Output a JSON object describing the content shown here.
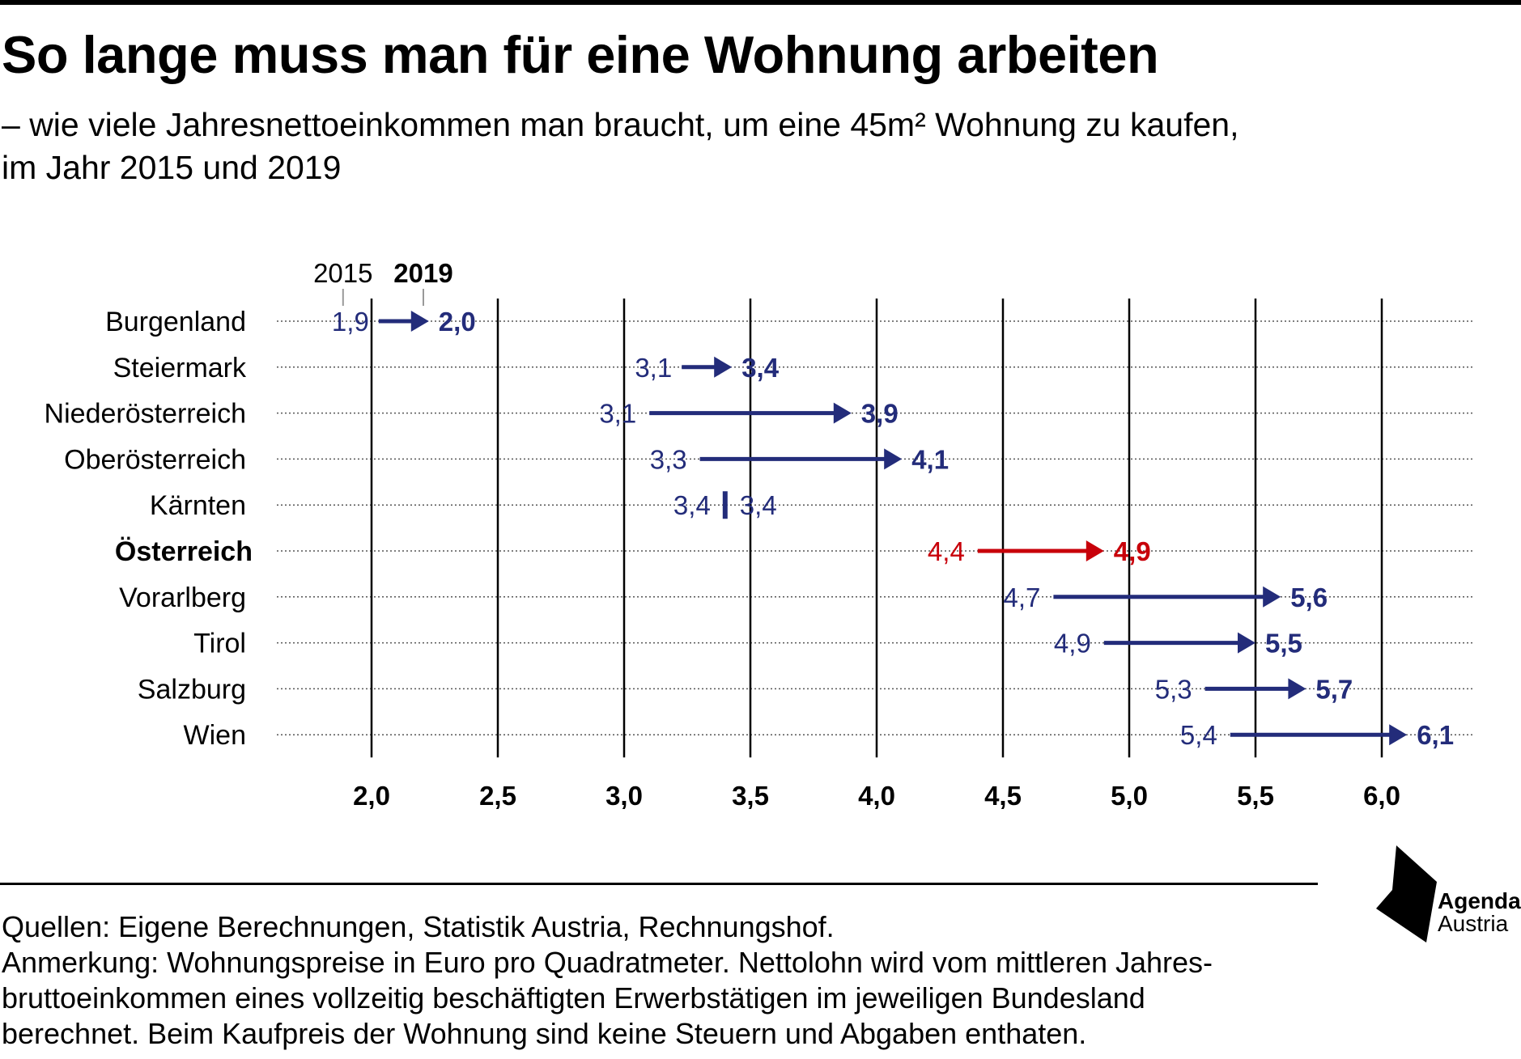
{
  "title": "So lange muss man für eine Wohnung arbeiten",
  "subtitle_line1": "– wie viele Jahresnettoeinkommen man braucht, um eine 45m² Wohnung zu kaufen,",
  "subtitle_line2": "im Jahr 2015 und 2019",
  "chart_data": {
    "type": "arrow-dot",
    "year_start_label": "2015",
    "year_end_label": "2019",
    "xlim": [
      1.8,
      6.4
    ],
    "x_ticks": [
      "2,0",
      "2,5",
      "3,0",
      "3,5",
      "4,0",
      "4,5",
      "5,0",
      "5,5",
      "6,0"
    ],
    "x_tick_values": [
      2.0,
      2.5,
      3.0,
      3.5,
      4.0,
      4.5,
      5.0,
      5.5,
      6.0
    ],
    "grid_vertical": true,
    "colors": {
      "default": "#232c7a",
      "highlight": "#c8000a"
    },
    "rows": [
      {
        "label": "Burgenland",
        "start": 1.9,
        "end": 2.0,
        "start_label": "1,9",
        "end_label": "2,0",
        "highlight": false
      },
      {
        "label": "Steiermark",
        "start": 3.1,
        "end": 3.4,
        "start_label": "3,1",
        "end_label": "3,4",
        "highlight": false
      },
      {
        "label": "Niederösterreich",
        "start": 3.1,
        "end": 3.9,
        "start_label": "3,1",
        "end_label": "3,9",
        "highlight": false
      },
      {
        "label": "Oberösterreich",
        "start": 3.3,
        "end": 4.1,
        "start_label": "3,3",
        "end_label": "4,1",
        "highlight": false
      },
      {
        "label": "Kärnten",
        "start": 3.4,
        "end": 3.4,
        "start_label": "3,4",
        "end_label": "3,4",
        "highlight": false
      },
      {
        "label": "Österreich",
        "start": 4.4,
        "end": 4.9,
        "start_label": "4,4",
        "end_label": "4,9",
        "highlight": true
      },
      {
        "label": "Vorarlberg",
        "start": 4.7,
        "end": 5.6,
        "start_label": "4,7",
        "end_label": "5,6",
        "highlight": false
      },
      {
        "label": "Tirol",
        "start": 4.9,
        "end": 5.5,
        "start_label": "4,9",
        "end_label": "5,5",
        "highlight": false
      },
      {
        "label": "Salzburg",
        "start": 5.3,
        "end": 5.7,
        "start_label": "5,3",
        "end_label": "5,7",
        "highlight": false
      },
      {
        "label": "Wien",
        "start": 5.4,
        "end": 6.1,
        "start_label": "5,4",
        "end_label": "6,1",
        "highlight": false
      }
    ]
  },
  "footer": {
    "sources": "Quellen: Eigene Berechnungen, Statistik Austria, Rechnungshof.",
    "note_line1": "Anmerkung: Wohnungspreise in Euro pro Quadratmeter. Nettolohn wird vom mittleren Jahres-",
    "note_line2": "bruttoeinkommen eines vollzeitig beschäftigten Erwerbstätigen im jeweiligen Bundesland",
    "note_line3": "berechnet. Beim Kaufpreis der Wohnung sind keine Steuern und Abgaben enthaten."
  },
  "logo": {
    "line1": "Agenda",
    "line2": "Austria",
    "icon": "agenda-austria-logo-icon"
  }
}
